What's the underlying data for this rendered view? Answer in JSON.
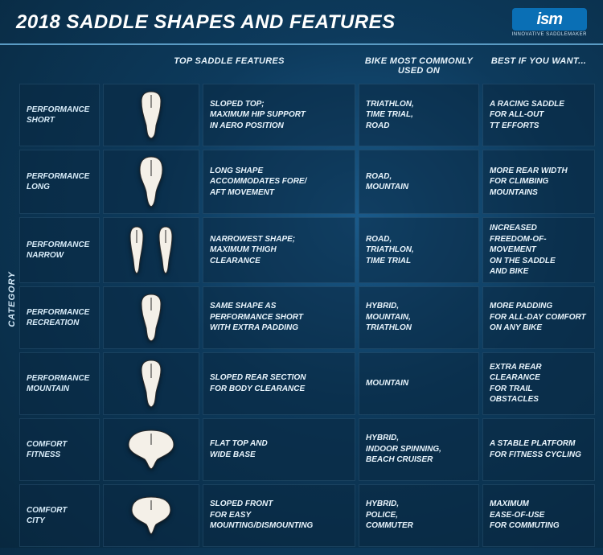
{
  "title": "2018 SADDLE SHAPES AND FEATURES",
  "logo": {
    "text": "ism",
    "sub": "INNOVATIVE SADDLEMAKER"
  },
  "category_rail_label": "CATEGORY",
  "headers": {
    "top_features": "TOP SADDLE FEATURES",
    "bike": "BIKE MOST COMMONLY USED ON",
    "best_if": "BEST IF YOU WANT..."
  },
  "rows": [
    {
      "category": "PERFORMANCE\nSHORT",
      "shape": "short",
      "features": "SLOPED TOP;\nMAXIMUM HIP SUPPORT\nIN AERO POSITION",
      "bike": "TRIATHLON,\nTIME TRIAL,\nROAD",
      "best_if": "A RACING SADDLE\nFOR ALL-OUT\nTT EFFORTS"
    },
    {
      "category": "PERFORMANCE\nLONG",
      "shape": "long",
      "features": "LONG SHAPE\nACCOMMODATES FORE/\nAFT MOVEMENT",
      "bike": "ROAD,\nMOUNTAIN",
      "best_if": "MORE REAR WIDTH\nFOR CLIMBING\nMOUNTAINS"
    },
    {
      "category": "PERFORMANCE\nNARROW",
      "shape": "narrow",
      "features": "NARROWEST SHAPE;\nMAXIMUM THIGH\nCLEARANCE",
      "bike": "ROAD,\nTRIATHLON,\nTIME TRIAL",
      "best_if": "INCREASED\nFREEDOM-OF-MOVEMENT\nON THE SADDLE\nAND BIKE"
    },
    {
      "category": "PERFORMANCE\nRECREATION",
      "shape": "short",
      "features": "SAME SHAPE AS\nPERFORMANCE SHORT\nWITH EXTRA PADDING",
      "bike": "HYBRID,\nMOUNTAIN,\nTRIATHLON",
      "best_if": "MORE PADDING\nFOR ALL-DAY COMFORT\nON ANY BIKE"
    },
    {
      "category": "PERFORMANCE\nMOUNTAIN",
      "shape": "mountain",
      "features": "SLOPED REAR SECTION\nFOR BODY CLEARANCE",
      "bike": "MOUNTAIN",
      "best_if": "EXTRA REAR\nCLEARANCE\nFOR TRAIL\nOBSTACLES"
    },
    {
      "category": "COMFORT\nFITNESS",
      "shape": "fitness",
      "features": "FLAT TOP AND\nWIDE BASE",
      "bike": "HYBRID,\nINDOOR SPINNING,\nBEACH CRUISER",
      "best_if": "A STABLE PLATFORM\nFOR FITNESS CYCLING"
    },
    {
      "category": "COMFORT\nCITY",
      "shape": "city",
      "features": "SLOPED FRONT\nFOR EASY\nMOUNTING/DISMOUNTING",
      "bike": "HYBRID,\nPOLICE,\nCOMMUTER",
      "best_if": "MAXIMUM\nEASE-OF-USE\nFOR COMMUTING"
    }
  ],
  "style": {
    "saddle_fill": "#f4f0e8",
    "saddle_stroke": "#2a2a2a"
  }
}
